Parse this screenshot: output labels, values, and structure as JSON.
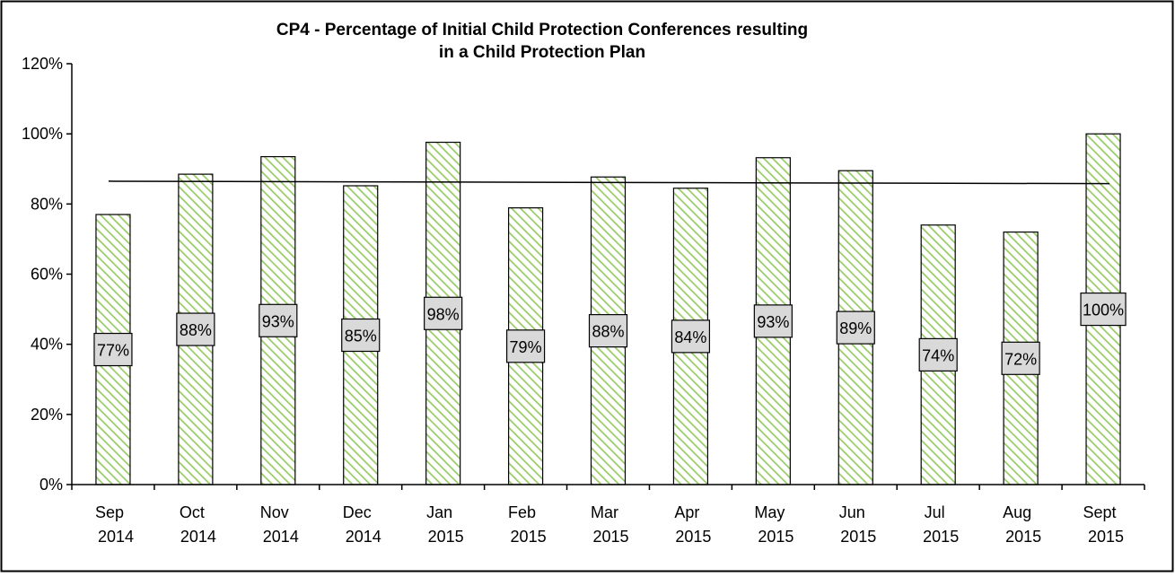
{
  "chart_data": {
    "type": "bar",
    "title_line1": "CP4 - Percentage of Initial Child Protection Conferences resulting",
    "title_line2": "in a Child Protection Plan",
    "xlabel": "",
    "ylabel": "",
    "ylim": [
      0,
      1.2
    ],
    "yticks": [
      0,
      0.2,
      0.4,
      0.6,
      0.8,
      1.0,
      1.2
    ],
    "ytick_labels": [
      "0%",
      "20%",
      "40%",
      "60%",
      "80%",
      "100%",
      "120%"
    ],
    "categories": [
      {
        "month": "Sep",
        "year": "2014"
      },
      {
        "month": "Oct",
        "year": "2014"
      },
      {
        "month": "Nov",
        "year": "2014"
      },
      {
        "month": "Dec",
        "year": "2014"
      },
      {
        "month": "Jan",
        "year": "2015"
      },
      {
        "month": "Feb",
        "year": "2015"
      },
      {
        "month": "Mar",
        "year": "2015"
      },
      {
        "month": "Apr",
        "year": "2015"
      },
      {
        "month": "May",
        "year": "2015"
      },
      {
        "month": "Jun",
        "year": "2015"
      },
      {
        "month": "Jul",
        "year": "2015"
      },
      {
        "month": "Aug",
        "year": "2015"
      },
      {
        "month": "Sept",
        "year": "2015"
      }
    ],
    "values": [
      0.77,
      0.885,
      0.935,
      0.852,
      0.976,
      0.789,
      0.877,
      0.845,
      0.932,
      0.895,
      0.74,
      0.72,
      1.0
    ],
    "data_labels": [
      "77%",
      "88%",
      "93%",
      "85%",
      "98%",
      "79%",
      "88%",
      "84%",
      "93%",
      "89%",
      "74%",
      "72%",
      "100%"
    ],
    "trendline": {
      "start": 0.865,
      "end": 0.858
    },
    "grid": false,
    "legend": "none",
    "colors": {
      "bar_fill": "#ffffff",
      "bar_hatch": "#99cc66",
      "bar_border": "#000000",
      "label_box": "#d9d9d9",
      "trendline": "#000000"
    }
  }
}
